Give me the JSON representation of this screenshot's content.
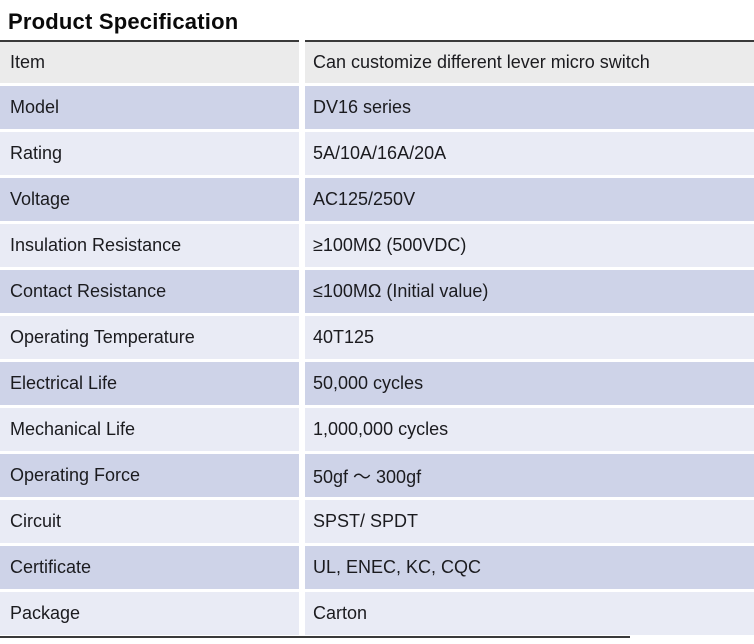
{
  "page": {
    "title": "Product Specification"
  },
  "colors": {
    "header_row_bg": "#ebebeb",
    "row_medium_lavender_bg": "#ced3e8",
    "row_light_lavender_bg": "#e9ebf5",
    "rule": "#3a3a3a",
    "text": "#1b1b1f"
  },
  "table": {
    "rows": [
      {
        "label": "Item",
        "value": "Can customize different lever micro switch"
      },
      {
        "label": "Model",
        "value": "DV16 series"
      },
      {
        "label": "Rating",
        "value": "5A/10A/16A/20A"
      },
      {
        "label": "Voltage",
        "value": "AC125/250V"
      },
      {
        "label": "Insulation Resistance",
        "value": "≥100MΩ (500VDC)"
      },
      {
        "label": "Contact Resistance",
        "value": "≤100MΩ (Initial value)"
      },
      {
        "label": "Operating Temperature",
        "value": "40T125"
      },
      {
        "label": "Electrical Life",
        "value": "50,000 cycles"
      },
      {
        "label": "Mechanical Life",
        "value": "1,000,000 cycles"
      },
      {
        "label": "Operating Force",
        "value": "50gf ～ 300gf"
      },
      {
        "label": "Circuit",
        "value": "SPST/ SPDT"
      },
      {
        "label": "Certificate",
        "value": "UL, ENEC, KC, CQC"
      },
      {
        "label": "Package",
        "value": "Carton"
      }
    ]
  }
}
